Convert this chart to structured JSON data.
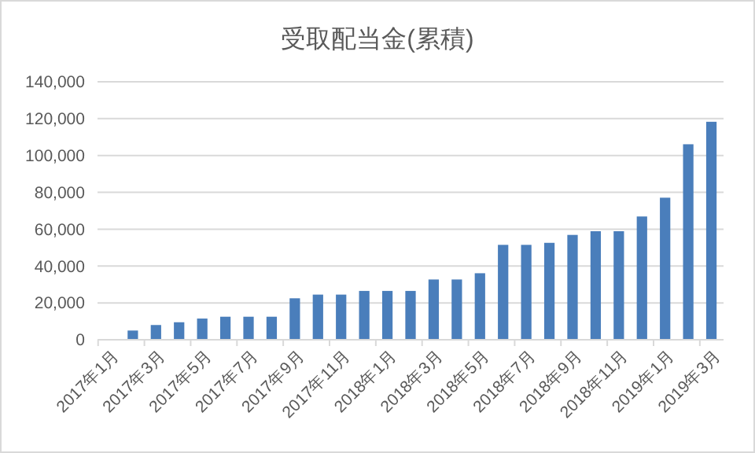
{
  "chart_data": {
    "type": "bar",
    "title": "受取配当金(累積)",
    "categories": [
      "2017年1月",
      null,
      "2017年3月",
      null,
      "2017年5月",
      null,
      "2017年7月",
      null,
      "2017年9月",
      null,
      "2017年11月",
      null,
      "2018年1月",
      null,
      "2018年3月",
      null,
      "2018年5月",
      null,
      "2018年7月",
      null,
      "2018年9月",
      null,
      "2018年11月",
      null,
      "2019年1月",
      null,
      "2019年3月"
    ],
    "values": [
      0,
      5000,
      8000,
      9500,
      11500,
      12500,
      12500,
      12500,
      22500,
      24500,
      24500,
      26500,
      26500,
      26500,
      32700,
      32700,
      36100,
      51500,
      51500,
      52600,
      56900,
      58900,
      58900,
      66900,
      77100,
      106100,
      118300
    ],
    "color": "#4a7ebb",
    "ylim": [
      0,
      140000
    ],
    "yticks": [
      {
        "value": 0,
        "label": "0"
      },
      {
        "value": 20000,
        "label": "20,000"
      },
      {
        "value": 40000,
        "label": "40,000"
      },
      {
        "value": 60000,
        "label": "60,000"
      },
      {
        "value": 80000,
        "label": "80,000"
      },
      {
        "value": 100000,
        "label": "100,000"
      },
      {
        "value": 120000,
        "label": "120,000"
      },
      {
        "value": 140000,
        "label": "140,000"
      }
    ],
    "grid": "y"
  }
}
